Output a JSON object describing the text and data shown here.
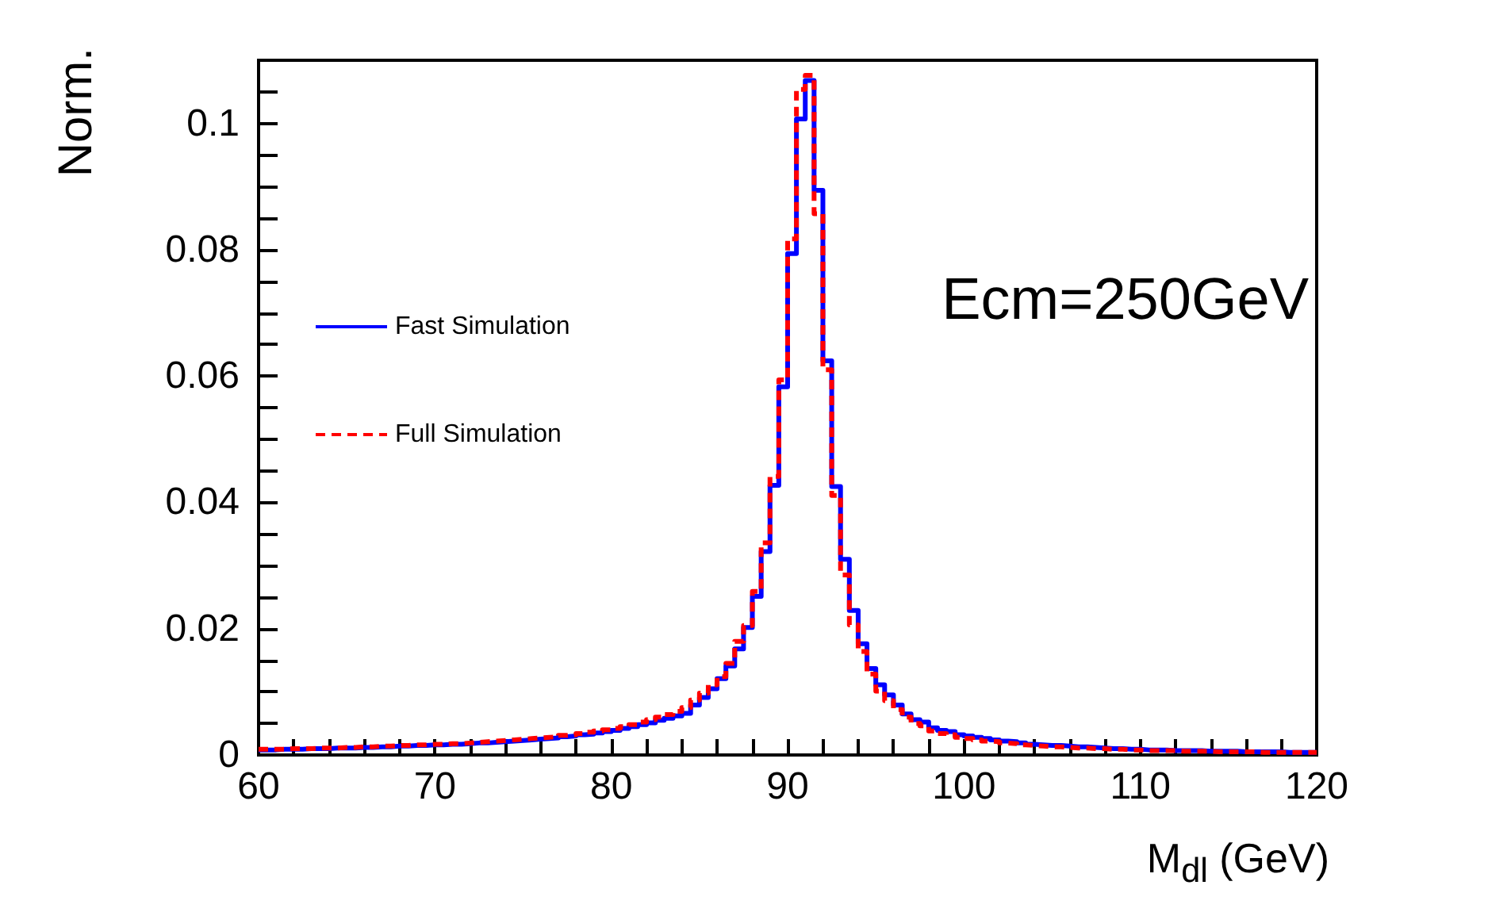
{
  "chart_data": {
    "type": "histogram",
    "ylabel": "Norm.",
    "xlabel": "M$_{dl}$ (GeV)",
    "annotations": [
      "Ecm=250GeV"
    ],
    "bins": [
      60,
      60.5,
      61,
      61.5,
      62,
      62.5,
      63,
      63.5,
      64,
      64.5,
      65,
      65.5,
      66,
      66.5,
      67,
      67.5,
      68,
      68.5,
      69,
      69.5,
      70,
      70.5,
      71,
      71.5,
      72,
      72.5,
      73,
      73.5,
      74,
      74.5,
      75,
      75.5,
      76,
      76.5,
      77,
      77.5,
      78,
      78.5,
      79,
      79.5,
      80,
      80.5,
      81,
      81.5,
      82,
      82.5,
      83,
      83.5,
      84,
      84.5,
      85,
      85.5,
      86,
      86.5,
      87,
      87.5,
      88,
      88.5,
      89,
      89.5,
      90,
      90.5,
      91,
      91.5,
      92,
      92.5,
      93,
      93.5,
      94,
      94.5,
      95,
      95.5,
      96,
      96.5,
      97,
      97.5,
      98,
      98.5,
      99,
      99.5,
      100,
      100.5,
      101,
      101.5,
      102,
      102.5,
      103,
      103.5,
      104,
      104.5,
      105,
      105.5,
      106,
      106.5,
      107,
      107.5,
      108,
      108.5,
      109,
      109.5,
      110,
      110.5,
      111,
      111.5,
      112,
      112.5,
      113,
      113.5,
      114,
      114.5,
      115,
      115.5,
      116,
      116.5,
      117,
      117.5,
      118,
      118.5,
      119,
      119.5,
      120
    ],
    "series": [
      {
        "name": "Fast Simulation",
        "color": "#0000ff",
        "line_style": "solid",
        "values": [
          0.0008,
          0.0008,
          0.0009,
          0.0009,
          0.0009,
          0.001,
          0.001,
          0.001,
          0.0011,
          0.0011,
          0.0011,
          0.0012,
          0.0012,
          0.0013,
          0.0013,
          0.0014,
          0.0014,
          0.0015,
          0.0015,
          0.0016,
          0.0016,
          0.0017,
          0.0017,
          0.0018,
          0.0019,
          0.0019,
          0.002,
          0.0021,
          0.0022,
          0.0023,
          0.0024,
          0.0025,
          0.0026,
          0.0027,
          0.0029,
          0.003,
          0.0032,
          0.0033,
          0.0035,
          0.0037,
          0.0039,
          0.0042,
          0.0045,
          0.0048,
          0.0051,
          0.0055,
          0.0058,
          0.0062,
          0.0066,
          0.0079,
          0.0091,
          0.0105,
          0.0121,
          0.0141,
          0.0168,
          0.0202,
          0.0251,
          0.0322,
          0.0427,
          0.0583,
          0.0794,
          0.1007,
          0.1068,
          0.0894,
          0.0624,
          0.0425,
          0.031,
          0.0229,
          0.0176,
          0.0137,
          0.0111,
          0.0095,
          0.0079,
          0.0065,
          0.0056,
          0.0052,
          0.0043,
          0.0039,
          0.0037,
          0.0032,
          0.003,
          0.0028,
          0.0026,
          0.0024,
          0.0022,
          0.0021,
          0.0019,
          0.0017,
          0.0016,
          0.0015,
          0.0015,
          0.0014,
          0.0013,
          0.0013,
          0.0012,
          0.0011,
          0.001,
          0.001,
          0.0009,
          0.0009,
          0.0008,
          0.0008,
          0.0008,
          0.0007,
          0.0007,
          0.0007,
          0.0007,
          0.0006,
          0.0006,
          0.0006,
          0.0006,
          0.0005,
          0.0005,
          0.0005,
          0.0005,
          0.0005,
          0.0004,
          0.0004,
          0.0004,
          0.0004
        ]
      },
      {
        "name": "Full Simulation",
        "color": "#ff0000",
        "line_style": "dashed",
        "values": [
          0.0009,
          0.0009,
          0.0009,
          0.001,
          0.001,
          0.001,
          0.0011,
          0.0011,
          0.0011,
          0.0012,
          0.0012,
          0.0013,
          0.0013,
          0.0014,
          0.0014,
          0.0015,
          0.0015,
          0.0016,
          0.0016,
          0.0017,
          0.0017,
          0.0018,
          0.0018,
          0.0019,
          0.002,
          0.0021,
          0.0022,
          0.0023,
          0.0024,
          0.0025,
          0.0026,
          0.0027,
          0.0028,
          0.0029,
          0.0031,
          0.0032,
          0.0034,
          0.0036,
          0.0038,
          0.004,
          0.0042,
          0.0045,
          0.0048,
          0.0052,
          0.0056,
          0.006,
          0.0064,
          0.0069,
          0.0075,
          0.0087,
          0.0098,
          0.0111,
          0.0124,
          0.0145,
          0.018,
          0.0205,
          0.0259,
          0.0336,
          0.0441,
          0.0594,
          0.0817,
          0.1054,
          0.1076,
          0.0857,
          0.061,
          0.0411,
          0.0285,
          0.0206,
          0.0164,
          0.0128,
          0.0101,
          0.0086,
          0.0072,
          0.006,
          0.005,
          0.0046,
          0.0038,
          0.0034,
          0.0032,
          0.0028,
          0.0026,
          0.0024,
          0.0022,
          0.0021,
          0.0019,
          0.0018,
          0.0016,
          0.0015,
          0.0014,
          0.0013,
          0.0013,
          0.0012,
          0.0011,
          0.0011,
          0.001,
          0.001,
          0.0009,
          0.0009,
          0.0008,
          0.0008,
          0.0007,
          0.0007,
          0.0007,
          0.0007,
          0.0006,
          0.0006,
          0.0006,
          0.0006,
          0.0005,
          0.0005,
          0.0005,
          0.0005,
          0.0005,
          0.0004,
          0.0004,
          0.0004,
          0.0004,
          0.0004,
          0.0004,
          0.0004
        ]
      }
    ],
    "xlim": [
      60,
      120
    ],
    "xticks": [
      60,
      {
        "value": 62,
        "label": null
      },
      {
        "value": 64,
        "label": null
      },
      {
        "value": 66,
        "label": null
      },
      {
        "value": 68,
        "label": null
      },
      70,
      {
        "value": 72,
        "label": null
      },
      {
        "value": 74,
        "label": null
      },
      {
        "value": 76,
        "label": null
      },
      {
        "value": 78,
        "label": null
      },
      80,
      {
        "value": 82,
        "label": null
      },
      {
        "value": 84,
        "label": null
      },
      {
        "value": 86,
        "label": null
      },
      {
        "value": 88,
        "label": null
      },
      90,
      {
        "value": 92,
        "label": null
      },
      {
        "value": 94,
        "label": null
      },
      {
        "value": 96,
        "label": null
      },
      {
        "value": 98,
        "label": null
      },
      100,
      {
        "value": 102,
        "label": null
      },
      {
        "value": 104,
        "label": null
      },
      {
        "value": 106,
        "label": null
      },
      {
        "value": 108,
        "label": null
      },
      110,
      {
        "value": 112,
        "label": null
      },
      {
        "value": 114,
        "label": null
      },
      {
        "value": 116,
        "label": null
      },
      {
        "value": 118,
        "label": null
      },
      120
    ],
    "ylim": [
      0,
      0.11
    ],
    "yticks": [
      0,
      {
        "value": 0.005,
        "label": null
      },
      0.02,
      {
        "value": 0.01,
        "label": null
      },
      {
        "value": 0.015,
        "label": null
      },
      {
        "value": 0.025,
        "label": null
      },
      {
        "value": 0.03,
        "label": null
      },
      {
        "value": 0.035,
        "label": null
      },
      0.04,
      {
        "value": 0.045,
        "label": null
      },
      {
        "value": 0.05,
        "label": null
      },
      {
        "value": 0.055,
        "label": null
      },
      0.06,
      {
        "value": 0.065,
        "label": null
      },
      {
        "value": 0.07,
        "label": null
      },
      {
        "value": 0.075,
        "label": null
      },
      0.08,
      {
        "value": 0.085,
        "label": null
      },
      {
        "value": 0.09,
        "label": null
      },
      {
        "value": 0.095,
        "label": null
      },
      0.1,
      {
        "value": 0.105,
        "label": null
      }
    ],
    "grid": false,
    "legend": "top left"
  }
}
